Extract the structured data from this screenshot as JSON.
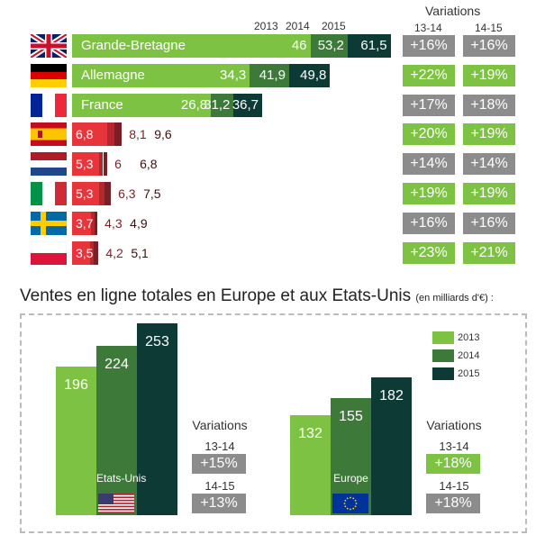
{
  "chart_data": [
    {
      "type": "bar",
      "orientation": "horizontal",
      "stacked": true,
      "legend": [
        "2013",
        "2014",
        "2015"
      ],
      "variation_header": "Variations",
      "variation_columns": [
        "13-14",
        "14-15"
      ],
      "colors": {
        "2013": "#7dc242",
        "2014": "#3d7a3a",
        "2015": "#0e3a36"
      },
      "rows": [
        {
          "country": "Grande-Bretagne",
          "values": [
            "46",
            "53,2",
            "61,5"
          ],
          "v1314": "+16%",
          "v1415": "+16%",
          "c1314": "gray",
          "c1415": "gray"
        },
        {
          "country": "Allemagne",
          "values": [
            "34,3",
            "41,9",
            "49,8"
          ],
          "v1314": "+22%",
          "v1415": "+19%",
          "c1314": "green",
          "c1415": "green"
        },
        {
          "country": "France",
          "values": [
            "26,8",
            "31,2",
            "36,7"
          ],
          "v1314": "+17%",
          "v1415": "+18%",
          "c1314": "gray",
          "c1415": "gray"
        },
        {
          "country": "",
          "values": [
            "6,8",
            "8,1",
            "9,6"
          ],
          "v1314": "+20%",
          "v1415": "+19%",
          "c1314": "green",
          "c1415": "green"
        },
        {
          "country": "",
          "values": [
            "5,3",
            "6",
            "6,8"
          ],
          "v1314": "+14%",
          "v1415": "+14%",
          "c1314": "gray",
          "c1415": "gray"
        },
        {
          "country": "",
          "values": [
            "5,3",
            "6,3",
            "7,5"
          ],
          "v1314": "+19%",
          "v1415": "+19%",
          "c1314": "green",
          "c1415": "green"
        },
        {
          "country": "",
          "values": [
            "3,7",
            "4,3",
            "4,9"
          ],
          "v1314": "+16%",
          "v1415": "+16%",
          "c1314": "gray",
          "c1415": "gray"
        },
        {
          "country": "",
          "values": [
            "3,5",
            "4,2",
            "5,1"
          ],
          "v1314": "+23%",
          "v1415": "+21%",
          "c1314": "green",
          "c1415": "green"
        }
      ]
    },
    {
      "type": "bar",
      "title": "Ventes en ligne totales en Europe et aux Etats-Unis",
      "subtitle": "(en milliards d'€) :",
      "categories": [
        "Etats-Unis",
        "Europe"
      ],
      "series": [
        {
          "name": "2013",
          "values": [
            196,
            132
          ]
        },
        {
          "name": "2014",
          "values": [
            224,
            155
          ]
        },
        {
          "name": "2015",
          "values": [
            253,
            182
          ]
        }
      ],
      "variations": [
        {
          "title": "Variations",
          "rows": [
            {
              "label": "13-14",
              "value": "+15%",
              "color": "gray"
            },
            {
              "label": "14-15",
              "value": "+13%",
              "color": "gray"
            }
          ]
        },
        {
          "title": "Variations",
          "rows": [
            {
              "label": "13-14",
              "value": "+18%",
              "color": "green"
            },
            {
              "label": "14-15",
              "value": "+18%",
              "color": "gray"
            }
          ]
        }
      ]
    }
  ],
  "flags": [
    "uk-flag-icon",
    "germany-flag-icon",
    "france-flag-icon",
    "spain-flag-icon",
    "netherlands-flag-icon",
    "italy-flag-icon",
    "sweden-flag-icon",
    "poland-flag-icon"
  ],
  "bottom_flags": [
    "usa-flag-icon",
    "eu-flag-icon"
  ],
  "pill_colors": {
    "gray": "#8c8c8c",
    "green": "#7dc242"
  },
  "small_colors": [
    "#e8353c",
    "#b5272f",
    "#7a1f25"
  ]
}
